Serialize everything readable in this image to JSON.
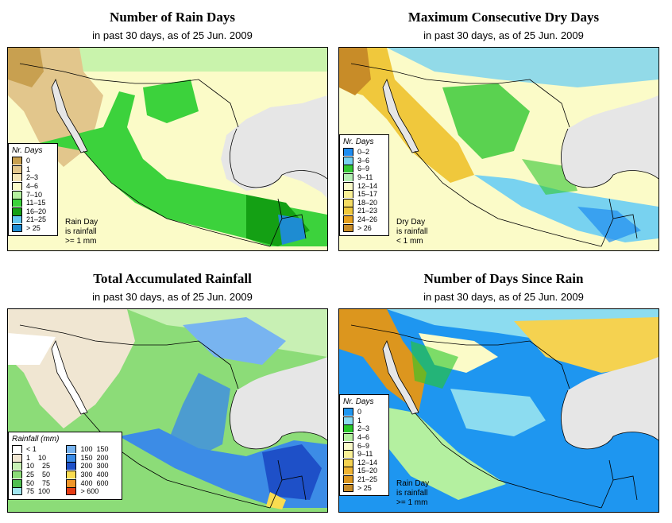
{
  "panels": [
    {
      "id": "rain-days",
      "title": "Number of Rain Days",
      "subtitle": "in past 30 days, as of  25 Jun. 2009",
      "legend_title": "Nr. Days",
      "legend": [
        {
          "label": "0",
          "color": "#c8a050"
        },
        {
          "label": "1",
          "color": "#e2c68c"
        },
        {
          "label": "2–3",
          "color": "#f4e6b8"
        },
        {
          "label": "4–6",
          "color": "#fbfbc8"
        },
        {
          "label": "7–10",
          "color": "#b4f0a0"
        },
        {
          "label": "11–15",
          "color": "#3cd23c"
        },
        {
          "label": "16–20",
          "color": "#14a014"
        },
        {
          "label": "21–25",
          "color": "#64c8f0"
        },
        {
          "label": "> 25",
          "color": "#1e8cd2"
        }
      ],
      "note": [
        "Rain Day",
        "is rainfall",
        ">= 1 mm"
      ]
    },
    {
      "id": "max-dry-days",
      "title": "Maximum Consecutive Dry Days",
      "subtitle": "in past 30 days, as of  25 Jun. 2009",
      "legend_title": "Nr. Days",
      "legend": [
        {
          "label": "0–2",
          "color": "#1e8cf0"
        },
        {
          "label": "3–6",
          "color": "#78d2f0"
        },
        {
          "label": "6–9",
          "color": "#32c832"
        },
        {
          "label": "9–11",
          "color": "#b4f0b4"
        },
        {
          "label": "12–14",
          "color": "#fbfbc8"
        },
        {
          "label": "15–17",
          "color": "#faf096"
        },
        {
          "label": "18–20",
          "color": "#f5dc64"
        },
        {
          "label": "21–23",
          "color": "#f0c83c"
        },
        {
          "label": "24–26",
          "color": "#e6a01e"
        },
        {
          "label": "> 26",
          "color": "#c88c28"
        }
      ],
      "note": [
        "Dry Day",
        "is rainfall",
        "< 1 mm"
      ]
    },
    {
      "id": "total-rainfall",
      "title": "Total Accumulated Rainfall",
      "subtitle": "in past 30 days, as of  25 Jun. 2009",
      "legend_title": "Rainfall (mm)",
      "legend": [
        {
          "label": "< 1",
          "color": "#ffffff"
        },
        {
          "label": "1    10",
          "color": "#f0e6d2"
        },
        {
          "label": "10    25",
          "color": "#c8f0b4"
        },
        {
          "label": "25    50",
          "color": "#8cdc78"
        },
        {
          "label": "50    75",
          "color": "#50be50"
        },
        {
          "label": "75  100",
          "color": "#a0e6f0"
        },
        {
          "label": "100  150",
          "color": "#78b4f0"
        },
        {
          "label": "150  200",
          "color": "#3c8ce6"
        },
        {
          "label": "200  300",
          "color": "#1e50c8"
        },
        {
          "label": "300  400",
          "color": "#fadc50"
        },
        {
          "label": "400  600",
          "color": "#f09628"
        },
        {
          "label": "> 600",
          "color": "#e63c14"
        }
      ],
      "note": []
    },
    {
      "id": "days-since-rain",
      "title": "Number of Days Since Rain",
      "subtitle": "in past 30 days, as of  25 Jun. 2009",
      "legend_title": "Nr. Days",
      "legend": [
        {
          "label": "0",
          "color": "#1e96f0"
        },
        {
          "label": "1",
          "color": "#8cdcf0"
        },
        {
          "label": "2–3",
          "color": "#28c828"
        },
        {
          "label": "4–6",
          "color": "#b4f0a0"
        },
        {
          "label": "6–9",
          "color": "#fbfbc8"
        },
        {
          "label": "9–11",
          "color": "#faf096"
        },
        {
          "label": "12–14",
          "color": "#f5d250"
        },
        {
          "label": "15–20",
          "color": "#f0b432"
        },
        {
          "label": "21–25",
          "color": "#dc961e"
        },
        {
          "label": "> 25",
          "color": "#c88c28"
        }
      ],
      "note": [
        "Rain Day",
        "is rainfall",
        ">= 1 mm"
      ]
    }
  ]
}
